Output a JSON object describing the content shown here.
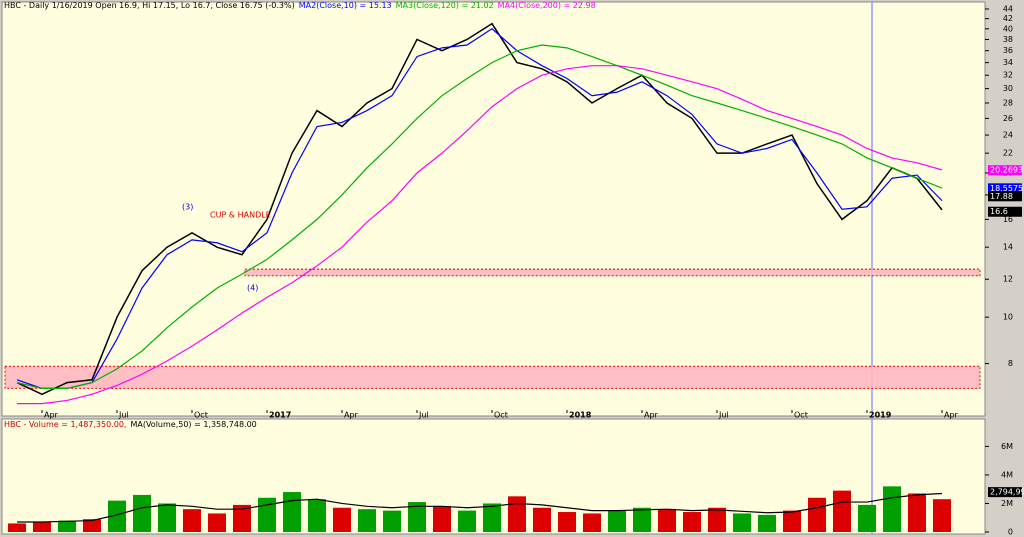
{
  "chart_data": [
    {
      "type": "line",
      "title": "HBC - Daily 1/16/2019 Open 16.9, Hi 17.15, Lo 16.7, Close 16.75 (-0.3%)",
      "categories": [
        null,
        "Apr",
        null,
        null,
        "Jul",
        null,
        null,
        "Oct",
        null,
        null,
        "2017",
        null,
        null,
        "Apr",
        null,
        null,
        "Jul",
        null,
        null,
        "Oct",
        null,
        null,
        "2018",
        null,
        null,
        "Apr",
        null,
        null,
        "Jul",
        null,
        null,
        "Oct",
        null,
        null,
        "2019",
        null,
        null,
        "Apr"
      ],
      "series": [
        {
          "color": "#000000",
          "values": [
            7.3,
            6.9,
            7.3,
            7.4,
            10,
            12.5,
            14,
            15,
            14,
            13.5,
            16,
            22,
            27,
            25,
            28,
            30,
            38,
            36,
            38,
            41,
            34,
            33,
            31,
            28,
            30,
            32,
            28,
            26,
            22,
            22,
            23,
            24,
            19,
            16,
            17.5,
            20.5,
            19.5,
            16.75
          ]
        },
        {
          "name": "MA2(Close,10) = 15.13",
          "color": "#0000ff",
          "values": [
            7.4,
            7.1,
            7.1,
            7.3,
            9,
            11.5,
            13.5,
            14.5,
            14.3,
            13.7,
            15,
            20,
            25,
            25.5,
            27,
            29,
            35,
            36.5,
            37,
            40,
            36,
            33.5,
            31.5,
            29,
            29.5,
            31,
            29,
            26.5,
            23,
            22,
            22.5,
            23.5,
            20,
            16.8,
            17,
            19.5,
            19.8,
            17.5
          ]
        },
        {
          "name": "MA3(Close,120) = 21.02",
          "color": "#00b000",
          "values": [
            7.3,
            7.1,
            7.1,
            7.3,
            7.8,
            8.5,
            9.5,
            10.5,
            11.5,
            12.3,
            13.2,
            14.5,
            16,
            18,
            20.5,
            23,
            26,
            29,
            31.5,
            34,
            36,
            37,
            36.5,
            35,
            33.5,
            32,
            30.5,
            29,
            28,
            27,
            26,
            25,
            24,
            23,
            21.5,
            20.5,
            19.5,
            18.6
          ]
        },
        {
          "name": "MA4(Close,200) = 22.98",
          "color": "#ff00ff",
          "values": [
            6.6,
            6.6,
            6.7,
            6.9,
            7.2,
            7.6,
            8.1,
            8.7,
            9.4,
            10.2,
            11,
            11.8,
            12.8,
            14,
            15.8,
            17.5,
            20,
            22,
            24.5,
            27.5,
            30,
            32,
            33,
            33.5,
            33.5,
            33,
            32,
            31,
            30,
            28.5,
            27,
            26,
            25,
            24,
            22.5,
            21.5,
            21,
            20.3
          ]
        }
      ],
      "ylim": [
        6.4,
        45.5
      ],
      "log_scale": true,
      "yticks": [
        8,
        10,
        12,
        14,
        16,
        18,
        20,
        22,
        24,
        26,
        28,
        30,
        32,
        34,
        36,
        38,
        40,
        42,
        44
      ],
      "tags": [
        {
          "value": 20.2693,
          "color": "#ff00ff"
        },
        {
          "value": 18.5925,
          "color": "#00b000"
        },
        {
          "value": 18.5575,
          "color": "#0000ff"
        },
        {
          "value": 17.88,
          "color": "#000000"
        },
        {
          "value": 16.6,
          "color": "#000000"
        }
      ],
      "zones": [
        [
          12.2,
          12.6
        ],
        [
          7.1,
          7.9
        ]
      ],
      "annotations": [
        "CUP & HANDLE",
        "(3)",
        "(4)"
      ]
    },
    {
      "type": "bar",
      "title": "HBC - Volume = 1,487,350.00,",
      "categories": [
        null,
        null,
        null,
        null,
        null,
        null,
        null,
        null,
        null,
        null,
        null,
        null,
        null,
        null,
        null,
        null,
        null,
        null,
        null,
        null,
        null,
        null,
        null,
        null,
        null,
        null,
        null,
        null,
        null,
        null,
        null,
        null,
        null,
        null,
        null,
        null,
        null,
        null
      ],
      "series": [
        {
          "name": "Volume",
          "values": [
            600000,
            700000,
            800000,
            900000,
            2200000,
            2600000,
            2000000,
            1600000,
            1300000,
            1900000,
            2400000,
            2800000,
            2300000,
            1700000,
            1600000,
            1500000,
            2100000,
            1800000,
            1500000,
            2000000,
            2500000,
            1700000,
            1400000,
            1300000,
            1500000,
            1700000,
            1600000,
            1400000,
            1700000,
            1300000,
            1200000,
            1500000,
            2400000,
            2900000,
            1900000,
            3200000,
            2700000,
            2300000
          ],
          "colors": [
            "#dd0000",
            "#dd0000",
            "#00a000",
            "#dd0000",
            "#00a000",
            "#00a000",
            "#00a000",
            "#dd0000",
            "#dd0000",
            "#dd0000",
            "#00a000",
            "#00a000",
            "#00a000",
            "#dd0000",
            "#00a000",
            "#00a000",
            "#00a000",
            "#dd0000",
            "#00a000",
            "#00a000",
            "#dd0000",
            "#dd0000",
            "#dd0000",
            "#dd0000",
            "#00a000",
            "#00a000",
            "#dd0000",
            "#dd0000",
            "#dd0000",
            "#00a000",
            "#00a000",
            "#dd0000",
            "#dd0000",
            "#dd0000",
            "#00a000",
            "#00a000",
            "#dd0000",
            "#dd0000"
          ]
        },
        {
          "name": "MA(Volume,50) = 1,358,748.00",
          "color": "#000000",
          "line": true,
          "values": [
            700000,
            700000,
            750000,
            800000,
            1200000,
            1700000,
            1900000,
            1800000,
            1600000,
            1600000,
            1900000,
            2200000,
            2300000,
            2000000,
            1800000,
            1700000,
            1800000,
            1800000,
            1700000,
            1800000,
            2000000,
            1900000,
            1700000,
            1500000,
            1500000,
            1550000,
            1600000,
            1500000,
            1550000,
            1450000,
            1350000,
            1400000,
            1700000,
            2100000,
            2100000,
            2400000,
            2600000,
            2700000
          ]
        }
      ],
      "ylim": [
        0,
        7500000
      ],
      "yticks": [
        0,
        {
          "value": 2000000,
          "label": "2M"
        },
        {
          "value": 4000000,
          "label": "4M"
        },
        {
          "value": 6000000,
          "label": "6M"
        }
      ],
      "tags": [
        {
          "value": 2794990,
          "label": "2,794,99",
          "color": "#000000"
        }
      ]
    }
  ]
}
